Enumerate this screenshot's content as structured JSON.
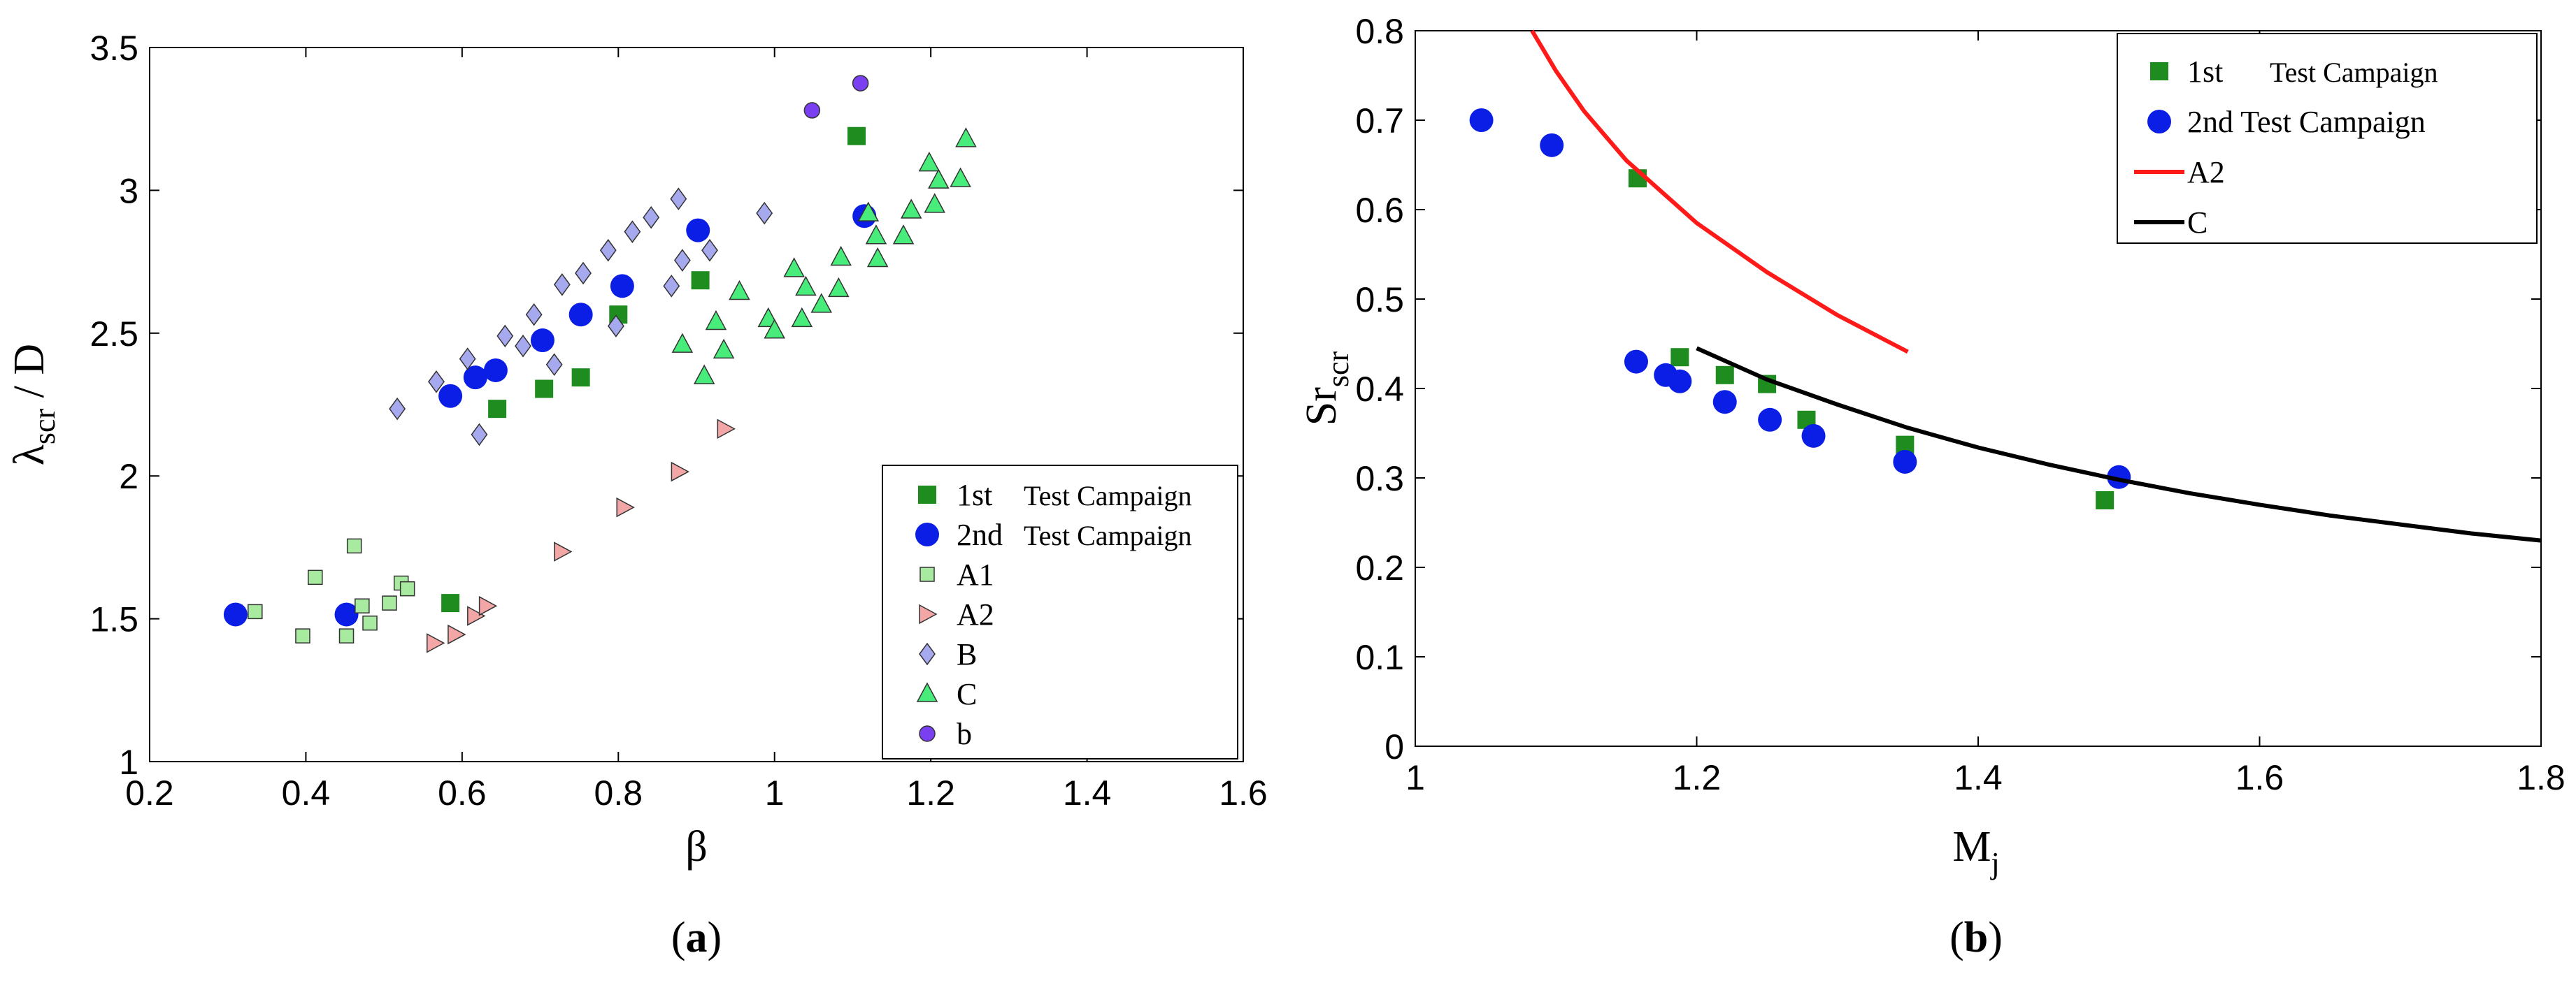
{
  "colors": {
    "campaign1": "#1e8c1e",
    "campaign2": "#0a1ee6",
    "A1": "#a8eaa0",
    "A2": "#f2a6a6",
    "B": "#a6a9ee",
    "C": "#48ec7a",
    "b": "#7a3ff0",
    "curveA2": "#ff1a1a",
    "curveC": "#000000"
  },
  "chart_data": [
    {
      "type": "scatter",
      "panel": "a",
      "caption": "(a)",
      "xlabel": "β",
      "ylabel": {
        "main": "λ",
        "sub": "scr",
        "suffix": " / D"
      },
      "xlim": [
        0.2,
        1.6
      ],
      "ylim": [
        1,
        3.5
      ],
      "xticks": [
        "0.2",
        "0.4",
        "0.6",
        "0.8",
        "1",
        "1.2",
        "1.4",
        "1.6"
      ],
      "yticks": [
        "1",
        "1.5",
        "2",
        "2.5",
        "3",
        "3.5"
      ],
      "legend_position": "bottom-right",
      "series": [
        {
          "name": "1st  Test Campaign",
          "label_a": "1st",
          "label_b": "Test Campaign",
          "marker": "square-big",
          "color_key": "campaign1",
          "points": [
            [
              0.585,
              1.555
            ],
            [
              0.645,
              2.235
            ],
            [
              0.705,
              2.305
            ],
            [
              0.752,
              2.345
            ],
            [
              0.8,
              2.565
            ],
            [
              0.905,
              2.685
            ],
            [
              1.105,
              3.19
            ]
          ]
        },
        {
          "name": "2nd Test Campaign",
          "label_a": "2nd",
          "label_b": "Test Campaign",
          "marker": "circle-big",
          "color_key": "campaign2",
          "points": [
            [
              0.31,
              1.515
            ],
            [
              0.452,
              1.515
            ],
            [
              0.585,
              2.28
            ],
            [
              0.617,
              2.345
            ],
            [
              0.643,
              2.37
            ],
            [
              0.703,
              2.475
            ],
            [
              0.752,
              2.565
            ],
            [
              0.805,
              2.665
            ],
            [
              0.902,
              2.86
            ],
            [
              1.115,
              2.91
            ]
          ]
        },
        {
          "name": "A1",
          "marker": "square-small",
          "color_key": "A1",
          "points": [
            [
              0.335,
              1.525
            ],
            [
              0.396,
              1.44
            ],
            [
              0.412,
              1.645
            ],
            [
              0.452,
              1.44
            ],
            [
              0.462,
              1.755
            ],
            [
              0.472,
              1.545
            ],
            [
              0.482,
              1.485
            ],
            [
              0.507,
              1.555
            ],
            [
              0.522,
              1.625
            ],
            [
              0.53,
              1.605
            ]
          ]
        },
        {
          "name": "A2",
          "marker": "triangle-right",
          "color_key": "A2",
          "points": [
            [
              0.565,
              1.415
            ],
            [
              0.592,
              1.445
            ],
            [
              0.617,
              1.51
            ],
            [
              0.632,
              1.545
            ],
            [
              0.728,
              1.735
            ],
            [
              0.808,
              1.89
            ],
            [
              0.878,
              2.015
            ],
            [
              0.937,
              2.165
            ]
          ]
        },
        {
          "name": "B",
          "marker": "diamond",
          "color_key": "B",
          "points": [
            [
              0.517,
              2.235
            ],
            [
              0.567,
              2.33
            ],
            [
              0.607,
              2.41
            ],
            [
              0.622,
              2.145
            ],
            [
              0.655,
              2.49
            ],
            [
              0.678,
              2.455
            ],
            [
              0.692,
              2.565
            ],
            [
              0.718,
              2.39
            ],
            [
              0.728,
              2.67
            ],
            [
              0.755,
              2.71
            ],
            [
              0.787,
              2.79
            ],
            [
              0.797,
              2.525
            ],
            [
              0.818,
              2.855
            ],
            [
              0.842,
              2.905
            ],
            [
              0.868,
              2.665
            ],
            [
              0.877,
              2.97
            ],
            [
              0.882,
              2.755
            ],
            [
              0.917,
              2.79
            ],
            [
              0.987,
              2.92
            ]
          ]
        },
        {
          "name": "C",
          "marker": "triangle-up",
          "color_key": "C",
          "points": [
            [
              0.882,
              2.46
            ],
            [
              0.91,
              2.35
            ],
            [
              0.925,
              2.54
            ],
            [
              0.935,
              2.44
            ],
            [
              0.955,
              2.645
            ],
            [
              0.992,
              2.55
            ],
            [
              1.0,
              2.51
            ],
            [
              1.025,
              2.725
            ],
            [
              1.035,
              2.55
            ],
            [
              1.04,
              2.66
            ],
            [
              1.06,
              2.6
            ],
            [
              1.082,
              2.655
            ],
            [
              1.085,
              2.765
            ],
            [
              1.12,
              2.92
            ],
            [
              1.13,
              2.84
            ],
            [
              1.132,
              2.76
            ],
            [
              1.165,
              2.84
            ],
            [
              1.175,
              2.93
            ],
            [
              1.198,
              3.095
            ],
            [
              1.205,
              2.95
            ],
            [
              1.21,
              3.035
            ],
            [
              1.238,
              3.04
            ],
            [
              1.245,
              3.18
            ]
          ]
        },
        {
          "name": "b",
          "marker": "circle-small",
          "color_key": "b",
          "points": [
            [
              1.048,
              3.28
            ],
            [
              1.11,
              3.375
            ]
          ]
        }
      ]
    },
    {
      "type": "scatter",
      "panel": "b",
      "caption": "(b)",
      "xlabel": {
        "main": "M",
        "sub": "j"
      },
      "ylabel": {
        "main": "Sr",
        "sub": "scr"
      },
      "xlim": [
        1,
        1.8
      ],
      "ylim": [
        0,
        0.8
      ],
      "xticks": [
        "1",
        "1.2",
        "1.4",
        "1.6",
        "1.8"
      ],
      "yticks": [
        "0",
        "0.1",
        "0.2",
        "0.3",
        "0.4",
        "0.5",
        "0.6",
        "0.7",
        "0.8"
      ],
      "legend_position": "top-right",
      "series": [
        {
          "name": "1st  Test Campaign",
          "label_a": "1st",
          "label_b": "Test Campaign",
          "marker": "square-big",
          "color_key": "campaign1",
          "points": [
            [
              1.158,
              0.635
            ],
            [
              1.188,
              0.435
            ],
            [
              1.22,
              0.415
            ],
            [
              1.25,
              0.405
            ],
            [
              1.278,
              0.365
            ],
            [
              1.348,
              0.337
            ],
            [
              1.49,
              0.275
            ]
          ]
        },
        {
          "name": "2nd Test Campaign",
          "label_a": "2nd Test Campaign",
          "marker": "circle-big",
          "color_key": "campaign2",
          "points": [
            [
              1.047,
              0.7
            ],
            [
              1.097,
              0.672
            ],
            [
              1.157,
              0.43
            ],
            [
              1.178,
              0.415
            ],
            [
              1.188,
              0.408
            ],
            [
              1.22,
              0.385
            ],
            [
              1.252,
              0.365
            ],
            [
              1.283,
              0.347
            ],
            [
              1.348,
              0.318
            ],
            [
              1.5,
              0.301
            ]
          ]
        },
        {
          "name": "A2",
          "marker": "line",
          "color_key": "curveA2",
          "points": [
            [
              1.083,
              0.8
            ],
            [
              1.1,
              0.755
            ],
            [
              1.12,
              0.71
            ],
            [
              1.15,
              0.655
            ],
            [
              1.2,
              0.585
            ],
            [
              1.25,
              0.53
            ],
            [
              1.3,
              0.482
            ],
            [
              1.35,
              0.441
            ]
          ]
        },
        {
          "name": "C",
          "marker": "line",
          "color_key": "curveC",
          "points": [
            [
              1.2,
              0.445
            ],
            [
              1.25,
              0.41
            ],
            [
              1.3,
              0.382
            ],
            [
              1.35,
              0.356
            ],
            [
              1.4,
              0.334
            ],
            [
              1.45,
              0.315
            ],
            [
              1.5,
              0.298
            ],
            [
              1.55,
              0.283
            ],
            [
              1.6,
              0.27
            ],
            [
              1.65,
              0.258
            ],
            [
              1.7,
              0.248
            ],
            [
              1.75,
              0.238
            ],
            [
              1.8,
              0.23
            ]
          ]
        }
      ]
    }
  ]
}
